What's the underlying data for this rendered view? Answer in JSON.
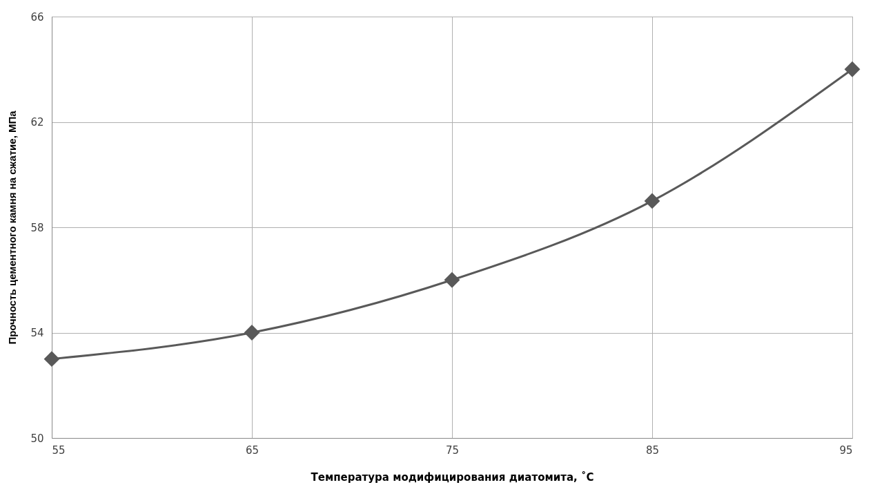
{
  "chart_data": {
    "type": "line",
    "xlabel": "Температура модифицирования диатомита, ˚С",
    "ylabel": "Прочность цементного камня на сжатие, МПа",
    "x": [
      55,
      65,
      75,
      85,
      95
    ],
    "series": [
      {
        "color": "#595959",
        "values": [
          53,
          54,
          56,
          59,
          64
        ]
      }
    ],
    "xlim": [
      55,
      95
    ],
    "xticks": [
      55,
      65,
      75,
      85,
      95
    ],
    "ylim": [
      50,
      66
    ],
    "yticks": [
      50,
      54,
      58,
      62,
      66
    ],
    "grid": true,
    "marker": "diamond",
    "line_style": "solid"
  }
}
